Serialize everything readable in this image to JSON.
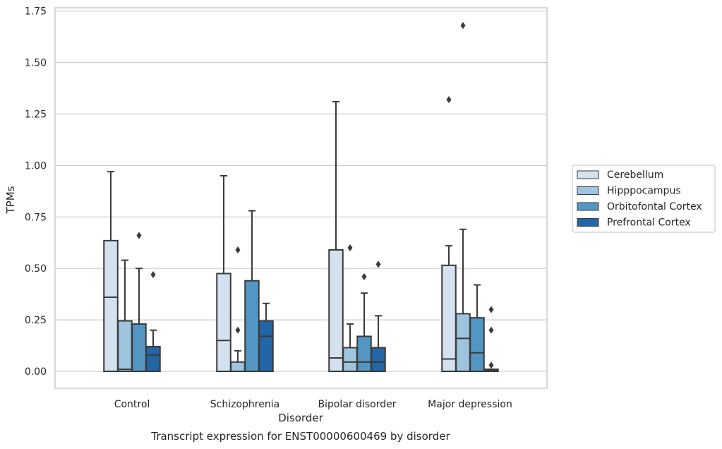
{
  "chart_data": {
    "type": "boxplot",
    "title": "Transcript expression for ENST00000600469 by disorder",
    "xlabel": "Disorder",
    "ylabel": "TPMs",
    "ylim": [
      -0.08,
      1.76
    ],
    "yticks": [
      0.0,
      0.25,
      0.5,
      0.75,
      1.0,
      1.25,
      1.5,
      1.75
    ],
    "ytick_labels": [
      "0.00",
      "0.25",
      "0.50",
      "0.75",
      "1.00",
      "1.25",
      "1.50",
      "1.75"
    ],
    "grid": true,
    "legend_position": "right",
    "categories": [
      "Control",
      "Schizophrenia",
      "Bipolar disorder",
      "Major depression"
    ],
    "series": [
      {
        "name": "Cerebellum",
        "color": "#d3e1f0",
        "boxes": [
          {
            "q1": 0.0,
            "median": 0.36,
            "q3": 0.635,
            "whisker_low": 0.0,
            "whisker_high": 0.97,
            "outliers": []
          },
          {
            "q1": 0.0,
            "median": 0.15,
            "q3": 0.475,
            "whisker_low": 0.0,
            "whisker_high": 0.95,
            "outliers": []
          },
          {
            "q1": 0.0,
            "median": 0.065,
            "q3": 0.59,
            "whisker_low": 0.0,
            "whisker_high": 1.31,
            "outliers": []
          },
          {
            "q1": 0.0,
            "median": 0.06,
            "q3": 0.515,
            "whisker_low": 0.0,
            "whisker_high": 0.61,
            "outliers": [
              1.32
            ]
          }
        ]
      },
      {
        "name": "Hipppocampus",
        "color": "#9ec4df",
        "boxes": [
          {
            "q1": 0.0,
            "median": 0.01,
            "q3": 0.245,
            "whisker_low": 0.0,
            "whisker_high": 0.54,
            "outliers": []
          },
          {
            "q1": 0.0,
            "median": 0.0,
            "q3": 0.045,
            "whisker_low": 0.0,
            "whisker_high": 0.1,
            "outliers": [
              0.59,
              0.2
            ]
          },
          {
            "q1": 0.0,
            "median": 0.045,
            "q3": 0.115,
            "whisker_low": 0.0,
            "whisker_high": 0.23,
            "outliers": [
              0.6
            ]
          },
          {
            "q1": 0.0,
            "median": 0.16,
            "q3": 0.28,
            "whisker_low": 0.0,
            "whisker_high": 0.69,
            "outliers": [
              1.68
            ]
          }
        ]
      },
      {
        "name": "Orbitofontal Cortex",
        "color": "#5396c4",
        "boxes": [
          {
            "q1": 0.0,
            "median": 0.0,
            "q3": 0.23,
            "whisker_low": 0.0,
            "whisker_high": 0.5,
            "outliers": [
              0.66
            ]
          },
          {
            "q1": 0.0,
            "median": 0.0,
            "q3": 0.44,
            "whisker_low": 0.0,
            "whisker_high": 0.78,
            "outliers": []
          },
          {
            "q1": 0.0,
            "median": 0.045,
            "q3": 0.17,
            "whisker_low": 0.0,
            "whisker_high": 0.38,
            "outliers": [
              0.46
            ]
          },
          {
            "q1": 0.0,
            "median": 0.09,
            "q3": 0.26,
            "whisker_low": 0.0,
            "whisker_high": 0.42,
            "outliers": []
          }
        ]
      },
      {
        "name": "Prefrontal Cortex",
        "color": "#2366a8",
        "boxes": [
          {
            "q1": 0.0,
            "median": 0.08,
            "q3": 0.12,
            "whisker_low": 0.0,
            "whisker_high": 0.2,
            "outliers": [
              0.47
            ]
          },
          {
            "q1": 0.0,
            "median": 0.17,
            "q3": 0.245,
            "whisker_low": 0.0,
            "whisker_high": 0.33,
            "outliers": []
          },
          {
            "q1": 0.0,
            "median": 0.045,
            "q3": 0.115,
            "whisker_low": 0.0,
            "whisker_high": 0.27,
            "outliers": [
              0.52
            ]
          },
          {
            "q1": 0.0,
            "median": 0.005,
            "q3": 0.01,
            "whisker_low": 0.0,
            "whisker_high": 0.01,
            "outliers": [
              0.3,
              0.2,
              0.03
            ]
          }
        ]
      }
    ]
  }
}
